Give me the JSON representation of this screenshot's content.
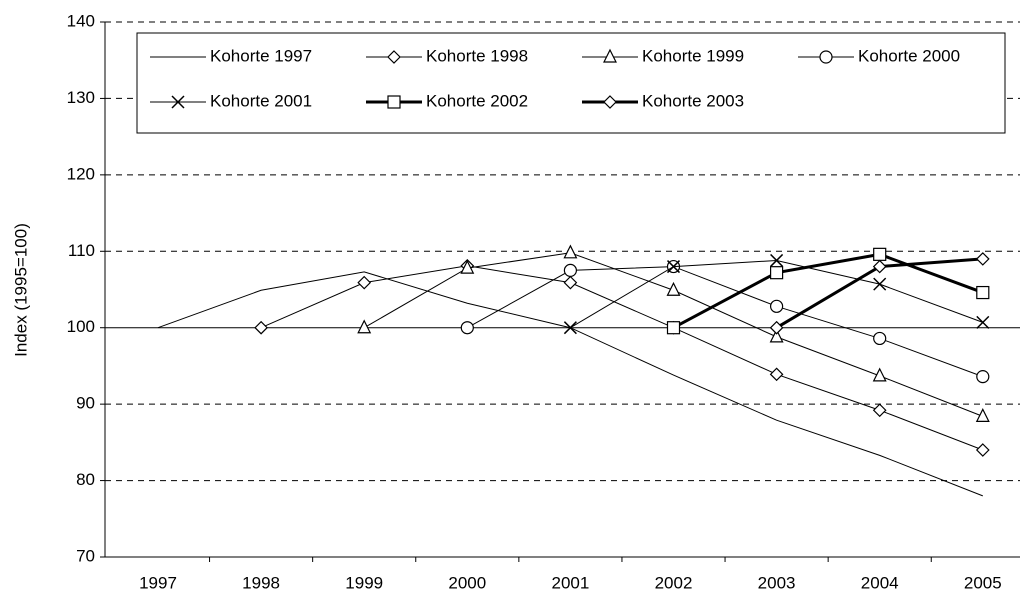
{
  "chart_data": {
    "type": "line",
    "y_label": "Index (1995=100)",
    "categories": [
      "1997",
      "1998",
      "1999",
      "2000",
      "2001",
      "2002",
      "2003",
      "2004",
      "2005"
    ],
    "ylim": [
      70,
      140
    ],
    "yticks": [
      70,
      80,
      90,
      100,
      110,
      120,
      130,
      140
    ],
    "grid": true,
    "baseline": 100,
    "legend": "top",
    "series": [
      {
        "name": "Kohorte 1997",
        "color": "#000000",
        "marker": "none",
        "line_width": 1,
        "values": [
          100,
          104.9,
          107.3,
          103.2,
          100,
          93.8,
          87.9,
          83.3,
          78.0
        ]
      },
      {
        "name": "Kohorte 1998",
        "color": "#000000",
        "marker": "diamond",
        "line_width": 1,
        "values": [
          null,
          100,
          105.9,
          108.1,
          105.9,
          100,
          93.9,
          89.2,
          84.0
        ]
      },
      {
        "name": "Kohorte 1999",
        "color": "#000000",
        "marker": "triangle",
        "line_width": 1,
        "values": [
          null,
          null,
          100,
          107.8,
          109.8,
          104.9,
          98.8,
          93.7,
          88.4
        ]
      },
      {
        "name": "Kohorte 2000",
        "color": "#000000",
        "marker": "circle",
        "line_width": 1,
        "values": [
          null,
          null,
          null,
          100,
          107.5,
          108.0,
          102.8,
          98.6,
          93.6
        ]
      },
      {
        "name": "Kohorte 2001",
        "color": "#000000",
        "marker": "x",
        "line_width": 1,
        "values": [
          null,
          null,
          null,
          null,
          100,
          108.0,
          108.8,
          105.7,
          100.7
        ]
      },
      {
        "name": "Kohorte 2002",
        "color": "#000000",
        "marker": "square",
        "line_width": 3,
        "values": [
          null,
          null,
          null,
          null,
          null,
          100,
          107.2,
          109.6,
          104.6
        ]
      },
      {
        "name": "Kohorte 2003",
        "color": "#000000",
        "marker": "diamond",
        "line_width": 3,
        "values": [
          null,
          null,
          null,
          null,
          null,
          null,
          100,
          108.0,
          109.0
        ]
      }
    ]
  }
}
